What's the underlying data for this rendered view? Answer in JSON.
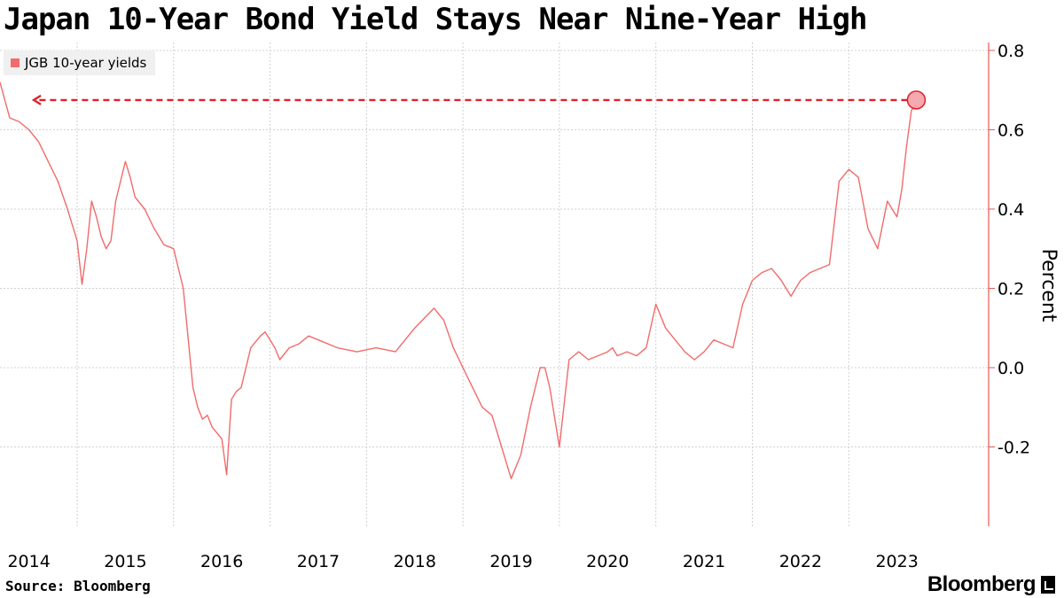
{
  "title": "Japan 10-Year Bond Yield Stays Near Nine-Year High",
  "source": "Source: Bloomberg",
  "brand": "Bloomberg",
  "colors": {
    "series": "#f26b6b",
    "highlight": "#e0202a",
    "axis": "#e8564f",
    "grid": "#d0d0d0"
  },
  "chart_data": {
    "type": "line",
    "title": "Japan 10-Year Bond Yield Stays Near Nine-Year High",
    "xlabel": "",
    "ylabel": "Percent",
    "ylim": [
      -0.4,
      0.82
    ],
    "yticks": [
      0.8,
      0.6,
      0.4,
      0.2,
      0.0,
      -0.2
    ],
    "ytick_labels": [
      "0.8",
      "0.6",
      "0.4",
      "0.2",
      "0.0",
      "-0.2"
    ],
    "xlim": [
      2013.7,
      2023.95
    ],
    "xticks": [
      2014,
      2015,
      2016,
      2017,
      2018,
      2019,
      2020,
      2021,
      2022,
      2023
    ],
    "xtick_labels": [
      "2014",
      "2015",
      "2016",
      "2017",
      "2018",
      "2019",
      "2020",
      "2021",
      "2022",
      "2023"
    ],
    "grid": true,
    "legend_position": "top-left",
    "series": [
      {
        "name": "JGB 10-year yields",
        "x": [
          2013.7,
          2013.8,
          2013.9,
          2014.0,
          2014.1,
          2014.2,
          2014.3,
          2014.4,
          2014.5,
          2014.55,
          2014.6,
          2014.65,
          2014.7,
          2014.75,
          2014.8,
          2014.85,
          2014.9,
          2015.0,
          2015.05,
          2015.1,
          2015.2,
          2015.3,
          2015.4,
          2015.5,
          2015.6,
          2015.7,
          2015.75,
          2015.8,
          2015.85,
          2015.9,
          2016.0,
          2016.05,
          2016.1,
          2016.15,
          2016.2,
          2016.3,
          2016.4,
          2016.45,
          2016.5,
          2016.55,
          2016.6,
          2016.7,
          2016.8,
          2016.9,
          2017.0,
          2017.2,
          2017.4,
          2017.6,
          2017.8,
          2018.0,
          2018.2,
          2018.3,
          2018.4,
          2018.5,
          2018.6,
          2018.7,
          2018.8,
          2018.9,
          2019.0,
          2019.1,
          2019.2,
          2019.3,
          2019.35,
          2019.4,
          2019.5,
          2019.6,
          2019.7,
          2019.8,
          2019.9,
          2020.0,
          2020.05,
          2020.1,
          2020.2,
          2020.3,
          2020.4,
          2020.5,
          2020.6,
          2020.7,
          2020.8,
          2020.9,
          2021.0,
          2021.1,
          2021.2,
          2021.3,
          2021.4,
          2021.5,
          2021.6,
          2021.7,
          2021.8,
          2021.9,
          2022.0,
          2022.1,
          2022.2,
          2022.3,
          2022.4,
          2022.5,
          2022.6,
          2022.7,
          2022.8,
          2022.9,
          2022.95,
          2023.0,
          2023.05,
          2023.1,
          2023.15,
          2023.2
        ],
        "values": [
          0.72,
          0.63,
          0.62,
          0.6,
          0.57,
          0.52,
          0.47,
          0.4,
          0.32,
          0.21,
          0.3,
          0.42,
          0.38,
          0.33,
          0.3,
          0.32,
          0.42,
          0.52,
          0.48,
          0.43,
          0.4,
          0.35,
          0.31,
          0.3,
          0.2,
          -0.05,
          -0.1,
          -0.13,
          -0.12,
          -0.15,
          -0.18,
          -0.27,
          -0.08,
          -0.06,
          -0.05,
          0.05,
          0.08,
          0.09,
          0.07,
          0.05,
          0.02,
          0.05,
          0.06,
          0.08,
          0.07,
          0.05,
          0.04,
          0.05,
          0.04,
          0.1,
          0.15,
          0.12,
          0.05,
          0.0,
          -0.05,
          -0.1,
          -0.12,
          -0.2,
          -0.28,
          -0.22,
          -0.1,
          0.0,
          0.0,
          -0.05,
          -0.2,
          0.02,
          0.04,
          0.02,
          0.03,
          0.04,
          0.05,
          0.03,
          0.04,
          0.03,
          0.05,
          0.16,
          0.1,
          0.07,
          0.04,
          0.02,
          0.04,
          0.07,
          0.06,
          0.05,
          0.16,
          0.22,
          0.24,
          0.25,
          0.22,
          0.18,
          0.22,
          0.24,
          0.25,
          0.26,
          0.47,
          0.5,
          0.48,
          0.35,
          0.3,
          0.42,
          0.4,
          0.38,
          0.45,
          0.56,
          0.65,
          0.66
        ]
      }
    ],
    "annotation": {
      "type": "dashed-arrow",
      "y": 0.675,
      "x_from": 2023.2,
      "x_to": 2014.05,
      "marker": "circle"
    }
  }
}
